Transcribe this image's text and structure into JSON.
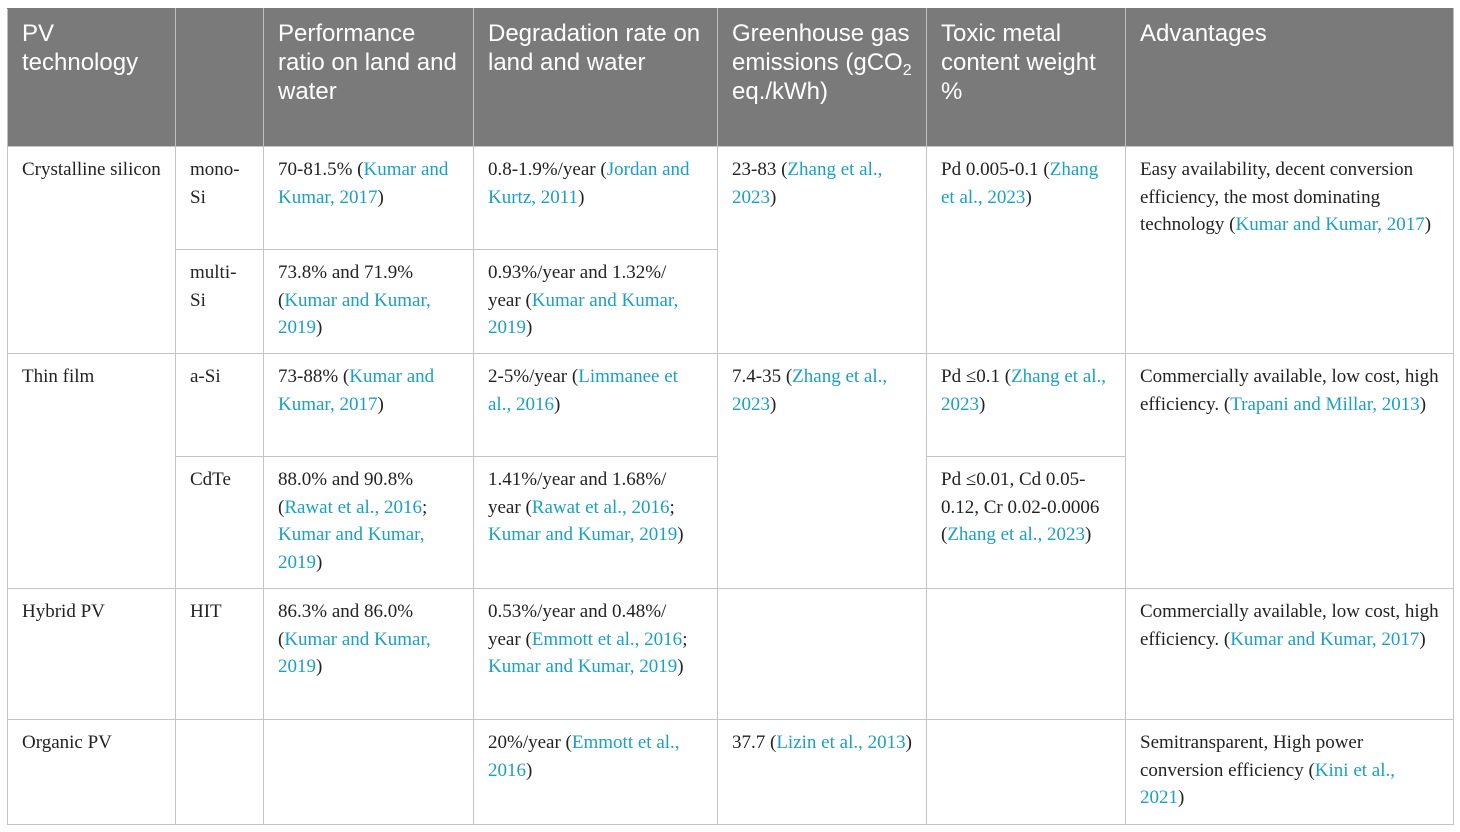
{
  "headers": {
    "technology": "PV technology",
    "subtype": "",
    "performance": "Performance ratio on land and water",
    "degradation": "Degradation rate on land and water",
    "ghg_prefix": "Greenhouse gas emissions (gCO",
    "ghg_sub": "2",
    "ghg_suffix": " eq./kWh)",
    "toxic": "Toxic metal content weight %",
    "advantages": "Advantages"
  },
  "groups": {
    "crystalline": {
      "label": "Crystalline silicon"
    },
    "thin_film": {
      "label": "Thin film"
    },
    "hybrid": {
      "label": "Hybrid PV"
    },
    "organic": {
      "label": "Organic PV"
    }
  },
  "rows": {
    "mono_si": {
      "subtype": "mono-Si",
      "performance": {
        "text": "70-81.5% (",
        "ref": "Kumar and Kumar, 2017",
        "close": ")"
      },
      "degradation": {
        "text": "0.8-1.9%/year (",
        "ref": "Jordan and Kurtz, 2011",
        "close": ")"
      }
    },
    "multi_si": {
      "subtype": "multi-Si",
      "performance": {
        "text": "73.8% and 71.9% (",
        "ref": "Kumar and Kumar, 2019",
        "close": ")"
      },
      "degradation": {
        "text": "0.93%/year and 1.32%/ year (",
        "ref": "Kumar and Kumar, 2019",
        "close": ")"
      }
    },
    "a_si": {
      "subtype": "a-Si",
      "performance": {
        "text": "73-88% (",
        "ref": "Kumar and Kumar, 2017",
        "close": ")"
      },
      "degradation": {
        "text": "2-5%/year (",
        "ref": "Limmanee et al., 2016",
        "close": ")"
      },
      "toxic": {
        "text": "Pd ≤0.1 (",
        "ref": "Zhang et al., 2023",
        "close": ")"
      }
    },
    "cdte": {
      "subtype": "CdTe",
      "performance": {
        "text": "88.0% and 90.8% (",
        "ref1": "Rawat et al., 2016",
        "sep": "; ",
        "ref2": "Kumar and Kumar, 2019",
        "close": ")"
      },
      "degradation": {
        "text": "1.41%/year and 1.68%/ year (",
        "ref1": "Rawat et al., 2016",
        "sep": "; ",
        "ref2": "Kumar and Kumar, 2019",
        "close": ")"
      },
      "toxic": {
        "text": "Pd ≤0.01, Cd 0.05-0.12, Cr 0.02-0.0006 (",
        "ref": "Zhang et al., 2023",
        "close": ")"
      }
    },
    "hit": {
      "subtype": "HIT",
      "performance": {
        "text": "86.3% and 86.0% (",
        "ref": "Kumar and Kumar, 2019",
        "close": ")"
      },
      "degradation": {
        "text": "0.53%/year and 0.48%/ year (",
        "ref1": "Emmott et al., 2016",
        "sep": "; ",
        "ref2": "Kumar and Kumar, 2019",
        "close": ")"
      },
      "advantages": {
        "text": "Commercially available, low cost, high efficiency. (",
        "ref": "Kumar and Kumar, 2017",
        "close": ")"
      }
    },
    "organic": {
      "degradation": {
        "text": "20%/year (",
        "ref": "Emmott et al., 2016",
        "close": ")"
      },
      "ghg": {
        "text": "37.7 (",
        "ref": "Lizin et al., 2013",
        "close": ")"
      },
      "advantages": {
        "text": "Semitransparent, High power conversion efficiency (",
        "ref": "Kini et al., 2021",
        "close": ")"
      }
    }
  },
  "merged": {
    "crystalline_ghg": {
      "text": "23-83 (",
      "ref": "Zhang et al., 2023",
      "close": ")"
    },
    "crystalline_toxic": {
      "text": "Pd 0.005-0.1 (",
      "ref": "Zhang et al., 2023",
      "close": ")"
    },
    "crystalline_advantages": {
      "text": "Easy availability, decent conversion efficiency, the most dominating technology (",
      "ref": "Kumar and Kumar, 2017",
      "close": ")"
    },
    "thin_ghg": {
      "text": "7.4-35 (",
      "ref": "Zhang et al., 2023",
      "close": ")"
    },
    "thin_advantages": {
      "text": "Commercially available, low cost, high efficiency. (",
      "ref": "Trapani and Millar, 2013",
      "close": ")"
    }
  },
  "colors": {
    "header_bg": "#7a7a7a",
    "header_text": "#ffffff",
    "link": "#1aa0c4",
    "border": "#c4c4c4"
  }
}
